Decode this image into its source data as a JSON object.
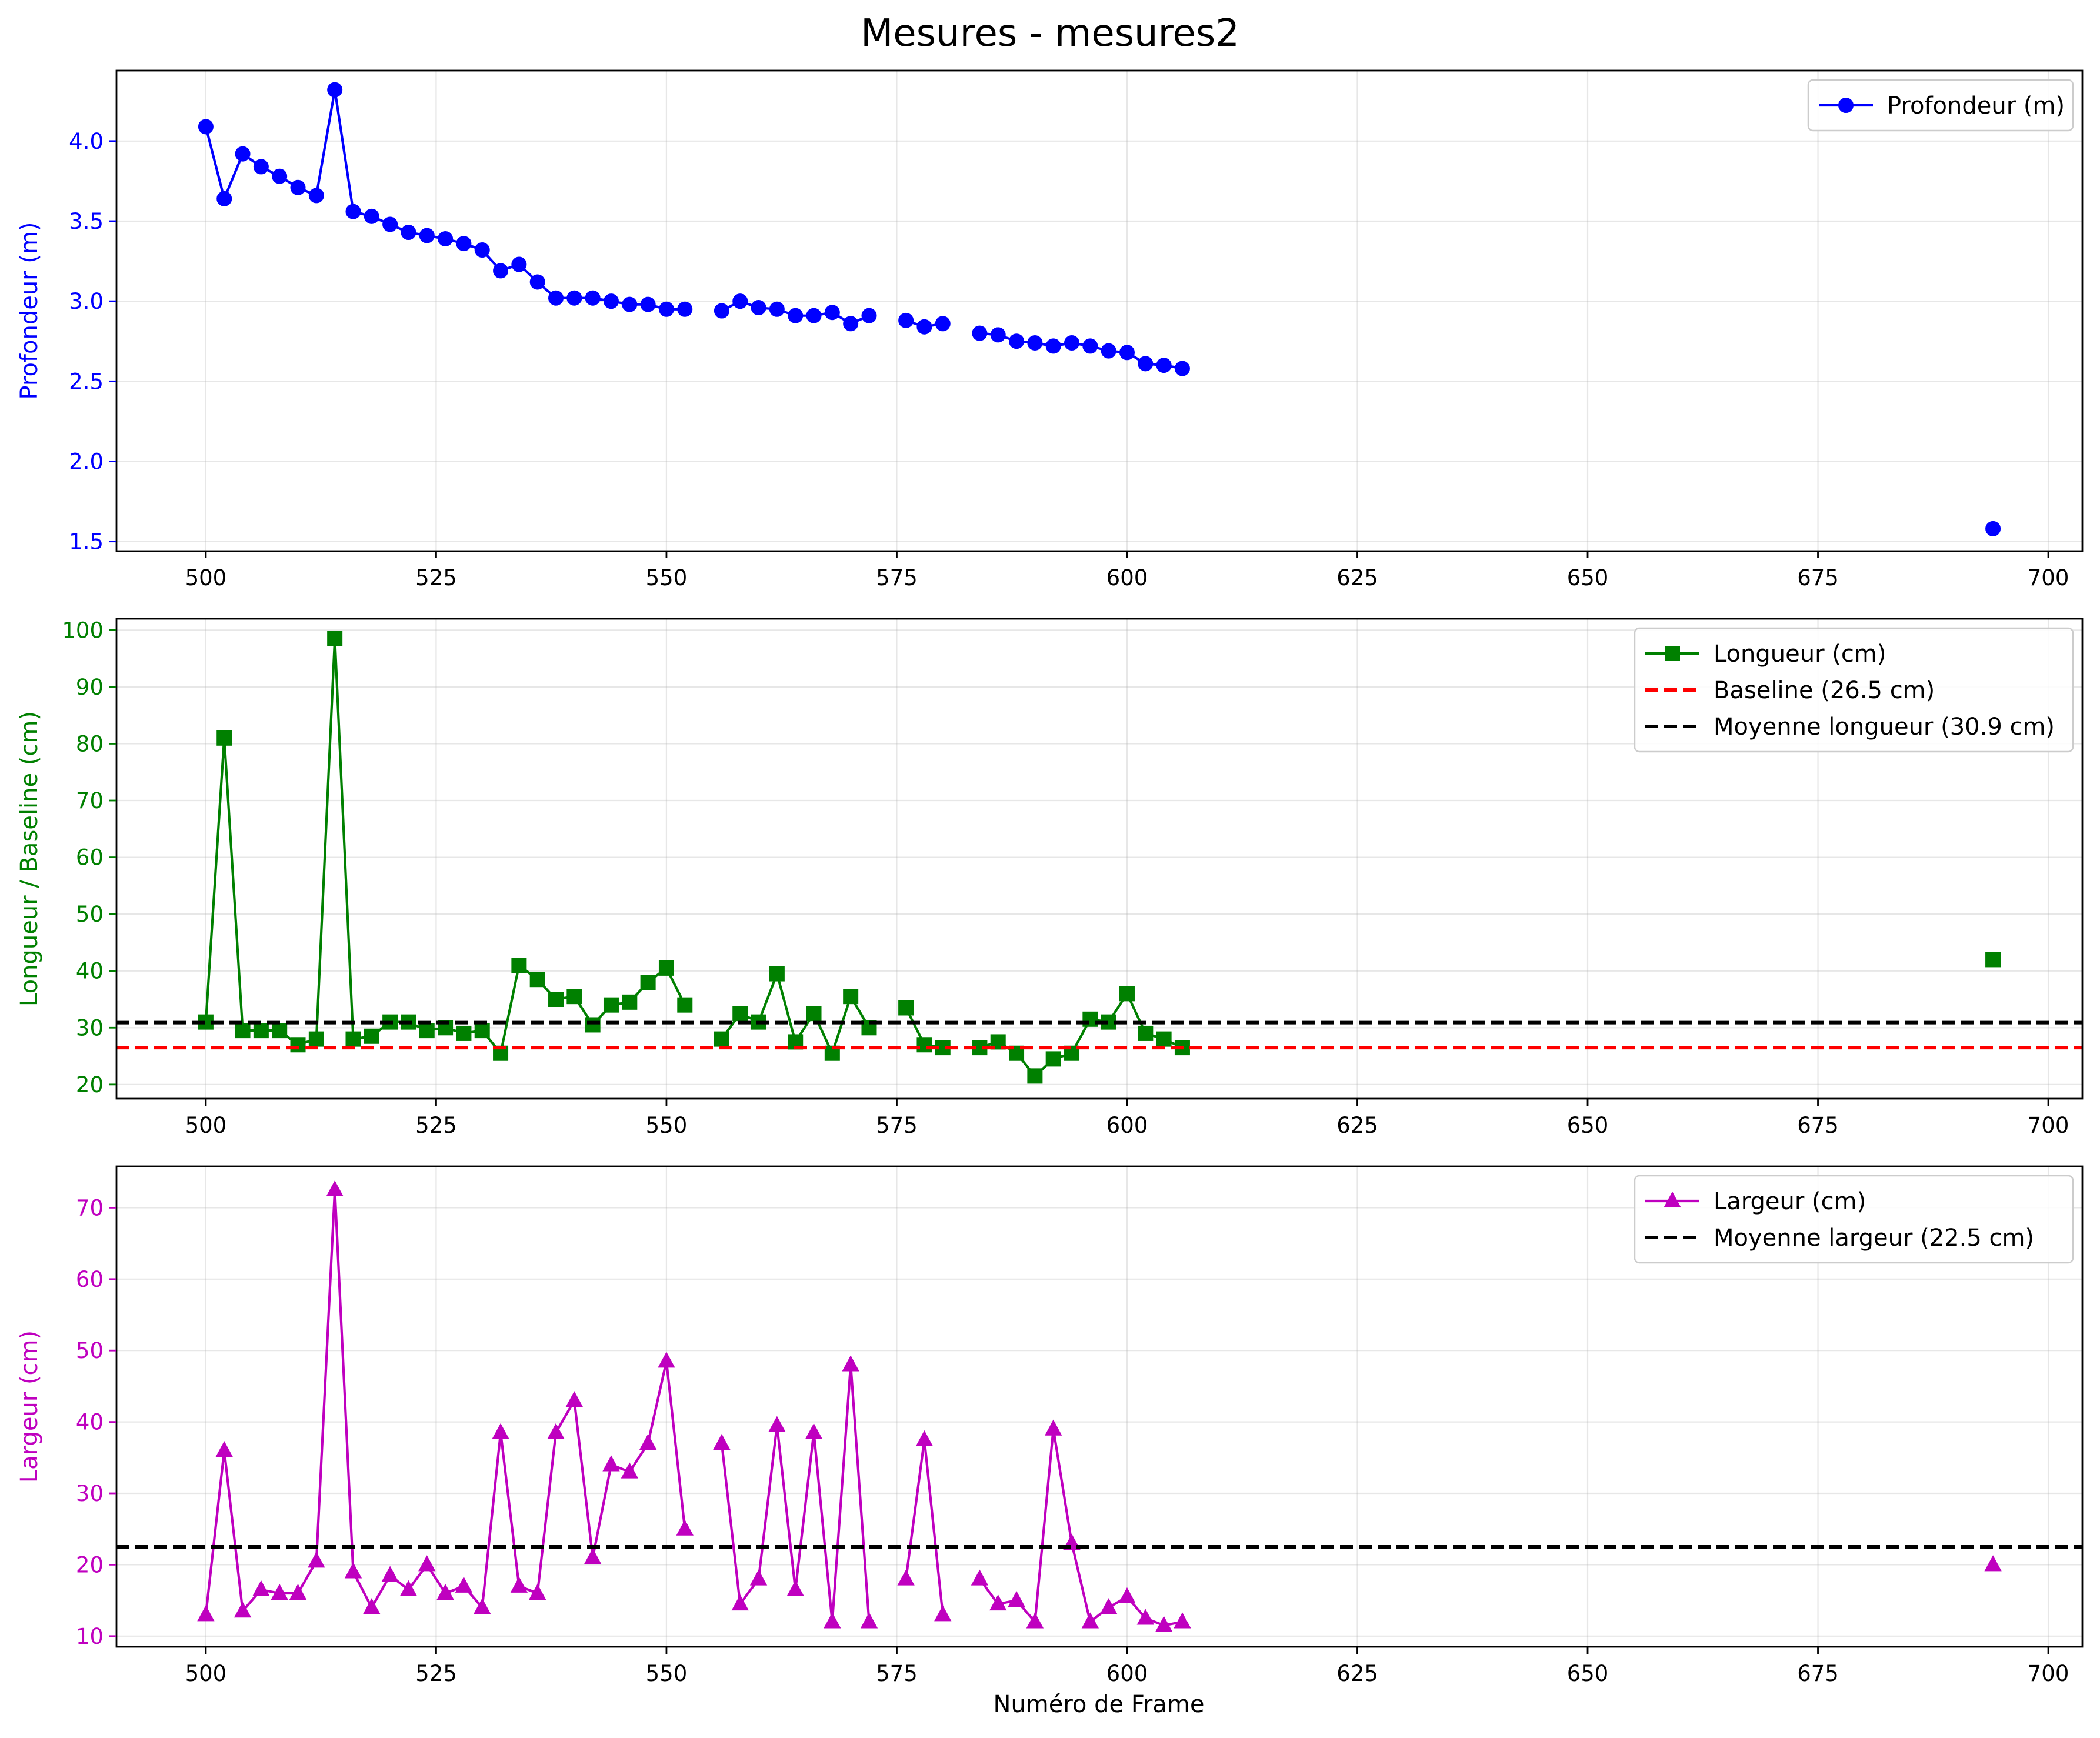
{
  "page_title": "Mesures - mesures2",
  "x_axis_label": "Numéro de Frame",
  "x_ticks": [
    500,
    525,
    550,
    575,
    600,
    625,
    650,
    675,
    700
  ],
  "chart_data": [
    {
      "type": "line",
      "panel": "top",
      "ylabel": "Profondeur (m)",
      "xlabel": "",
      "xlim": [
        490.3,
        703.7
      ],
      "ylim": [
        1.44,
        4.44
      ],
      "yticks": [
        1.5,
        2.0,
        2.5,
        3.0,
        3.5,
        4.0
      ],
      "ytick_labels": [
        "1.5",
        "2.0",
        "2.5",
        "3.0",
        "3.5",
        "4.0"
      ],
      "axis_color": "#0000ff",
      "grid": true,
      "legend_position": "top-right",
      "series": [
        {
          "name": "Profondeur (m)",
          "color": "#0000ff",
          "marker": "circle",
          "line_style": "solid",
          "x": [
            500,
            502,
            504,
            506,
            508,
            510,
            512,
            514,
            516,
            518,
            520,
            522,
            524,
            526,
            528,
            530,
            532,
            534,
            536,
            538,
            540,
            542,
            544,
            546,
            548,
            550,
            552,
            null,
            556,
            558,
            560,
            562,
            564,
            566,
            568,
            570,
            572,
            null,
            576,
            578,
            580,
            null,
            584,
            586,
            588,
            590,
            592,
            594,
            596,
            598,
            600,
            602,
            604,
            606,
            null,
            694
          ],
          "y": [
            4.09,
            3.64,
            3.92,
            3.84,
            3.78,
            3.71,
            3.66,
            4.32,
            3.56,
            3.53,
            3.48,
            3.43,
            3.41,
            3.39,
            3.36,
            3.32,
            3.19,
            3.23,
            3.12,
            3.02,
            3.02,
            3.02,
            3.0,
            2.98,
            2.98,
            2.95,
            2.95,
            null,
            2.94,
            3.0,
            2.96,
            2.95,
            2.91,
            2.91,
            2.93,
            2.86,
            2.91,
            null,
            2.88,
            2.84,
            2.86,
            null,
            2.8,
            2.79,
            2.75,
            2.74,
            2.72,
            2.74,
            2.72,
            2.69,
            2.68,
            2.61,
            2.6,
            2.58,
            null,
            1.58
          ]
        }
      ]
    },
    {
      "type": "line",
      "panel": "middle",
      "ylabel": "Longueur / Baseline (cm)",
      "xlabel": "",
      "xlim": [
        490.3,
        703.7
      ],
      "ylim": [
        17.5,
        102.0
      ],
      "yticks": [
        20,
        30,
        40,
        50,
        60,
        70,
        80,
        90,
        100
      ],
      "ytick_labels": [
        "20",
        "30",
        "40",
        "50",
        "60",
        "70",
        "80",
        "90",
        "100"
      ],
      "axis_color": "#008000",
      "grid": true,
      "legend_position": "top-right",
      "series": [
        {
          "name": "Longueur (cm)",
          "color": "#008000",
          "marker": "square",
          "line_style": "solid",
          "x": [
            500,
            502,
            504,
            506,
            508,
            510,
            512,
            514,
            516,
            518,
            520,
            522,
            524,
            526,
            528,
            530,
            532,
            534,
            536,
            538,
            540,
            542,
            544,
            546,
            548,
            550,
            552,
            null,
            556,
            558,
            560,
            562,
            564,
            566,
            568,
            570,
            572,
            null,
            576,
            578,
            580,
            null,
            584,
            586,
            588,
            590,
            592,
            594,
            596,
            598,
            600,
            602,
            604,
            606,
            null,
            694
          ],
          "y": [
            31,
            81,
            29.5,
            29.5,
            29.5,
            27,
            28,
            98.5,
            28,
            28.5,
            31,
            31,
            29.5,
            30,
            29,
            29.5,
            25.5,
            41,
            38.5,
            35,
            35.5,
            30.5,
            34,
            34.5,
            38,
            40.5,
            34,
            null,
            28,
            32.5,
            31,
            39.5,
            27.5,
            32.5,
            25.5,
            35.5,
            30,
            null,
            33.5,
            27,
            26.5,
            null,
            26.5,
            27.5,
            25.5,
            21.5,
            24.5,
            25.5,
            31.5,
            31,
            36,
            29,
            28,
            26.5,
            null,
            42
          ]
        },
        {
          "name": "Baseline (26.5 cm)",
          "color": "#ff0000",
          "marker": "none",
          "line_style": "dashed",
          "x": [
            490.3,
            703.7
          ],
          "y": [
            26.5,
            26.5
          ]
        },
        {
          "name": "Moyenne longueur (30.9 cm)",
          "color": "#000000",
          "marker": "none",
          "line_style": "dashed",
          "x": [
            490.3,
            703.7
          ],
          "y": [
            30.9,
            30.9
          ]
        }
      ]
    },
    {
      "type": "line",
      "panel": "bottom",
      "ylabel": "Largeur (cm)",
      "xlabel": "Numéro de Frame",
      "xlim": [
        490.3,
        703.7
      ],
      "ylim": [
        8.5,
        75.8
      ],
      "yticks": [
        10,
        20,
        30,
        40,
        50,
        60,
        70
      ],
      "ytick_labels": [
        "10",
        "20",
        "30",
        "40",
        "50",
        "60",
        "70"
      ],
      "axis_color": "#bf00bf",
      "grid": true,
      "legend_position": "top-right",
      "series": [
        {
          "name": "Largeur (cm)",
          "color": "#bf00bf",
          "marker": "triangle",
          "line_style": "solid",
          "x": [
            500,
            502,
            504,
            506,
            508,
            510,
            512,
            514,
            516,
            518,
            520,
            522,
            524,
            526,
            528,
            530,
            532,
            534,
            536,
            538,
            540,
            542,
            544,
            546,
            548,
            550,
            552,
            null,
            556,
            558,
            560,
            562,
            564,
            566,
            568,
            570,
            572,
            null,
            576,
            578,
            580,
            null,
            584,
            586,
            588,
            590,
            592,
            594,
            596,
            598,
            600,
            602,
            604,
            606,
            null,
            694
          ],
          "y": [
            13,
            36,
            13.5,
            16.5,
            16,
            16,
            20.5,
            72.5,
            19,
            14,
            18.5,
            16.5,
            20,
            16,
            17,
            14,
            38.5,
            17,
            16,
            38.5,
            43,
            21,
            34,
            33,
            37,
            48.5,
            25,
            null,
            37,
            14.5,
            18,
            39.5,
            16.5,
            38.5,
            12,
            48,
            12,
            null,
            18,
            37.5,
            13,
            null,
            18,
            14.5,
            15,
            12,
            39,
            23,
            12,
            14,
            15.5,
            12.5,
            11.5,
            12,
            null,
            20
          ]
        },
        {
          "name": "Moyenne largeur (22.5 cm)",
          "color": "#000000",
          "marker": "none",
          "line_style": "dashed",
          "x": [
            490.3,
            703.7
          ],
          "y": [
            22.5,
            22.5
          ]
        }
      ]
    }
  ]
}
